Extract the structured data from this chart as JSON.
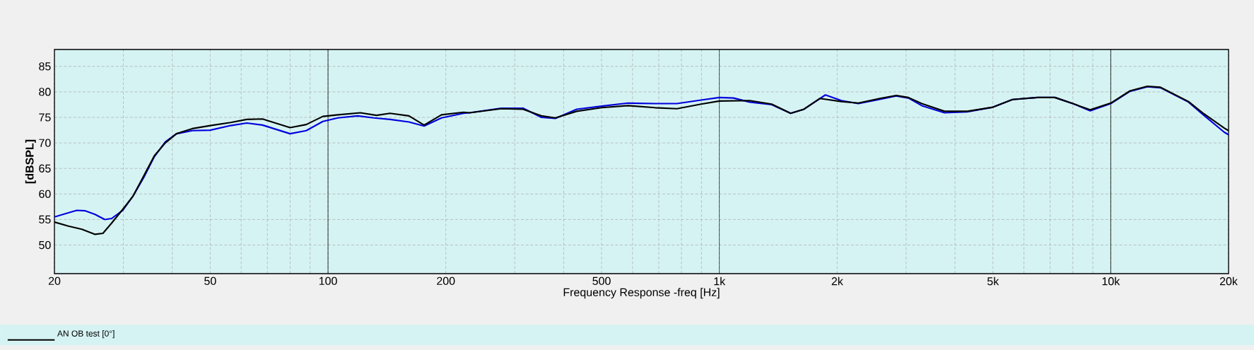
{
  "chart_data": {
    "type": "line",
    "xlabel": "Frequency Response -freq [Hz]",
    "ylabel": "[dBSPL]",
    "log": "x",
    "grid": true,
    "legend": "bottom",
    "marker": "none",
    "line_style": "solid",
    "xlim": [
      20,
      20000
    ],
    "ylim": [
      44.4,
      88.3
    ],
    "xticks": [
      20,
      {
        "value": 30,
        "label": null
      },
      {
        "value": 40,
        "label": null
      },
      50,
      {
        "value": 60,
        "label": null
      },
      {
        "value": 70,
        "label": null
      },
      {
        "value": 80,
        "label": null
      },
      {
        "value": 90,
        "label": null
      },
      100,
      200,
      {
        "value": 300,
        "label": null
      },
      {
        "value": 400,
        "label": null
      },
      500,
      {
        "value": 600,
        "label": null
      },
      {
        "value": 700,
        "label": null
      },
      {
        "value": 800,
        "label": null
      },
      {
        "value": 900,
        "label": null
      },
      {
        "value": 1000,
        "label": "1k"
      },
      {
        "value": 2000,
        "label": "2k"
      },
      {
        "value": 3000,
        "label": null
      },
      {
        "value": 4000,
        "label": null
      },
      {
        "value": 5000,
        "label": "5k"
      },
      {
        "value": 6000,
        "label": null
      },
      {
        "value": 7000,
        "label": null
      },
      {
        "value": 8000,
        "label": null
      },
      {
        "value": 9000,
        "label": null
      },
      {
        "value": 10000,
        "label": "10k"
      },
      {
        "value": 20000,
        "label": "20k"
      }
    ],
    "yticks": [
      50,
      55,
      60,
      65,
      70,
      75,
      80,
      85
    ],
    "series": [
      {
        "color": "#0000dd",
        "x": [
          20,
          21.7,
          22.8,
          24,
          25.4,
          26.9,
          28,
          29.9,
          31.7,
          33.8,
          36,
          38.4,
          41,
          45,
          50,
          56.4,
          62,
          68,
          80,
          88,
          97,
          106,
          119,
          131,
          144,
          161,
          176,
          195,
          222,
          230,
          277,
          315,
          351,
          381,
          432,
          500,
          584,
          685,
          779,
          898,
          1000,
          1087,
          1195,
          1360,
          1521,
          1645,
          1866,
          2050,
          2265,
          2520,
          2830,
          3040,
          3290,
          3760,
          4300,
          5000,
          5610,
          6500,
          7200,
          8000,
          8860,
          10000,
          11200,
          12400,
          13400,
          15800,
          17300,
          19500,
          20000
        ],
        "values": [
          55.5,
          56.3,
          56.8,
          56.7,
          56,
          55,
          55.2,
          56.8,
          59.5,
          63.2,
          67.3,
          70.2,
          71.8,
          72.4,
          72.5,
          73.4,
          73.9,
          73.5,
          71.8,
          72.4,
          74.2,
          74.9,
          75.3,
          74.9,
          74.6,
          74.1,
          73.3,
          74.9,
          75.8,
          75.9,
          76.8,
          76.8,
          75.0,
          74.8,
          76.6,
          77.2,
          77.8,
          77.7,
          77.7,
          78.4,
          78.9,
          78.8,
          78.0,
          77.5,
          75.8,
          76.6,
          79.4,
          78.3,
          77.7,
          78.4,
          79.2,
          78.8,
          77.3,
          75.9,
          76.1,
          77.0,
          78.5,
          78.9,
          78.9,
          77.7,
          76.3,
          77.7,
          80.1,
          81.0,
          80.8,
          78.0,
          75.4,
          72.1,
          71.6
        ]
      },
      {
        "name": "AN OB test [0°]",
        "color": "#000000",
        "x": [
          20,
          21.7,
          23.5,
          25.4,
          26.6,
          28,
          29.9,
          31.7,
          33.8,
          36,
          38.4,
          41,
          45,
          50,
          56.4,
          62,
          68,
          80,
          88,
          97,
          106,
          121,
          133,
          144,
          161,
          176,
          195,
          222,
          230,
          277,
          315,
          351,
          381,
          432,
          500,
          584,
          685,
          779,
          898,
          1000,
          1195,
          1360,
          1521,
          1645,
          1805,
          2050,
          2265,
          2570,
          2830,
          3040,
          3290,
          3760,
          4300,
          5000,
          5610,
          6500,
          7200,
          8000,
          8860,
          10000,
          11200,
          12400,
          13400,
          15800,
          17300,
          19500,
          20000
        ],
        "values": [
          54.5,
          53.7,
          53.1,
          52.1,
          52.3,
          54.3,
          57,
          59.5,
          63.5,
          67.5,
          70,
          71.8,
          72.8,
          73.4,
          74,
          74.6,
          74.7,
          73,
          73.6,
          75.2,
          75.5,
          75.9,
          75.4,
          75.8,
          75.3,
          73.5,
          75.5,
          76,
          75.9,
          76.7,
          76.6,
          75.3,
          74.9,
          76.2,
          76.9,
          77.3,
          76.9,
          76.7,
          77.6,
          78.2,
          78.3,
          77.6,
          75.8,
          76.6,
          78.7,
          78.1,
          77.8,
          78.7,
          79.3,
          78.9,
          77.7,
          76.2,
          76.2,
          77.0,
          78.5,
          78.9,
          78.9,
          77.7,
          76.5,
          77.8,
          80.2,
          81.1,
          80.9,
          78.1,
          75.7,
          72.9,
          72.4
        ]
      }
    ]
  }
}
